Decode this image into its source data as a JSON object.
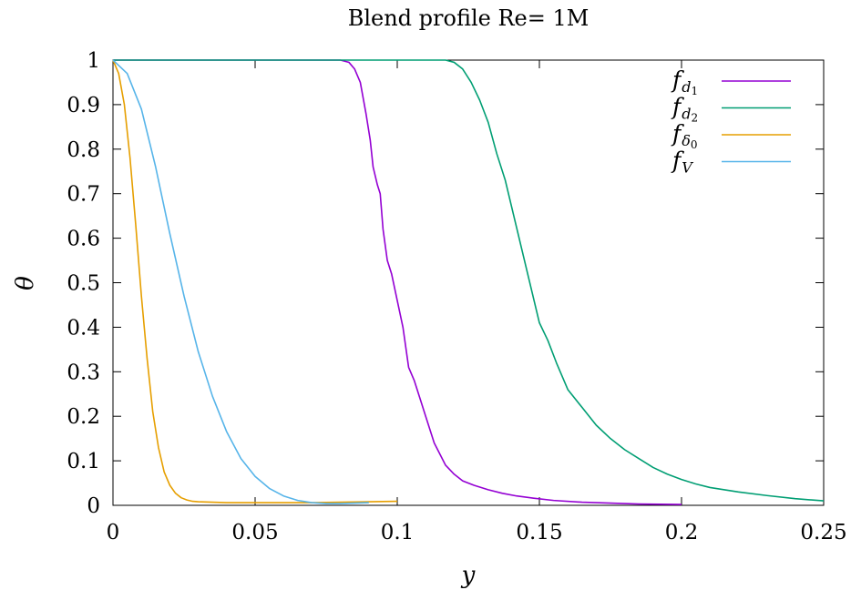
{
  "chart_data": {
    "type": "line",
    "title": "Blend profile Re= 1M",
    "xlabel": "y",
    "ylabel": "θ",
    "xlim": [
      0,
      0.25
    ],
    "ylim": [
      0,
      1
    ],
    "grid": false,
    "legend_position": "top-right",
    "x_ticks": [
      "0",
      "0.05",
      "0.1",
      "0.15",
      "0.2",
      "0.25"
    ],
    "y_ticks": [
      "0",
      "0.1",
      "0.2",
      "0.3",
      "0.4",
      "0.5",
      "0.6",
      "0.7",
      "0.8",
      "0.9",
      "1"
    ],
    "series": [
      {
        "name": "f_{d_1}",
        "legend": {
          "base": "f",
          "sub": "d",
          "subsub": "1"
        },
        "color": "#9400d3",
        "x": [
          0,
          0.02,
          0.05,
          0.08,
          0.083,
          0.085,
          0.087,
          0.089,
          0.0905,
          0.0915,
          0.093,
          0.094,
          0.095,
          0.0965,
          0.098,
          0.1,
          0.102,
          0.104,
          0.106,
          0.108,
          0.11,
          0.113,
          0.117,
          0.12,
          0.123,
          0.127,
          0.132,
          0.137,
          0.142,
          0.148,
          0.155,
          0.165,
          0.175,
          0.185,
          0.2
        ],
        "y": [
          1,
          1,
          1,
          1,
          0.995,
          0.98,
          0.95,
          0.88,
          0.82,
          0.76,
          0.72,
          0.7,
          0.62,
          0.55,
          0.52,
          0.46,
          0.4,
          0.31,
          0.28,
          0.24,
          0.2,
          0.14,
          0.09,
          0.07,
          0.055,
          0.045,
          0.035,
          0.027,
          0.021,
          0.016,
          0.011,
          0.007,
          0.005,
          0.003,
          0.002
        ]
      },
      {
        "name": "f_{d_2}",
        "legend": {
          "base": "f",
          "sub": "d",
          "subsub": "2"
        },
        "color": "#009e73",
        "x": [
          0,
          0.05,
          0.1,
          0.117,
          0.12,
          0.123,
          0.126,
          0.129,
          0.132,
          0.135,
          0.138,
          0.141,
          0.144,
          0.147,
          0.15,
          0.153,
          0.156,
          0.16,
          0.165,
          0.17,
          0.175,
          0.18,
          0.185,
          0.19,
          0.195,
          0.2,
          0.205,
          0.21,
          0.22,
          0.23,
          0.24,
          0.25
        ],
        "y": [
          1,
          1,
          1,
          1,
          0.995,
          0.98,
          0.95,
          0.91,
          0.86,
          0.79,
          0.73,
          0.65,
          0.57,
          0.49,
          0.41,
          0.37,
          0.32,
          0.26,
          0.22,
          0.18,
          0.15,
          0.125,
          0.105,
          0.085,
          0.07,
          0.058,
          0.048,
          0.04,
          0.03,
          0.022,
          0.015,
          0.01
        ]
      },
      {
        "name": "f_{δ_0}",
        "legend": {
          "base": "f",
          "sub": "δ",
          "subsub": "0"
        },
        "color": "#e69f00",
        "x": [
          0,
          0.002,
          0.004,
          0.006,
          0.008,
          0.01,
          0.012,
          0.014,
          0.016,
          0.018,
          0.02,
          0.022,
          0.024,
          0.026,
          0.028,
          0.03,
          0.035,
          0.04,
          0.05,
          0.06,
          0.07,
          0.08,
          0.09,
          0.1
        ],
        "y": [
          1,
          0.97,
          0.9,
          0.78,
          0.63,
          0.47,
          0.33,
          0.21,
          0.13,
          0.075,
          0.045,
          0.027,
          0.017,
          0.012,
          0.009,
          0.008,
          0.007,
          0.006,
          0.006,
          0.006,
          0.006,
          0.007,
          0.008,
          0.009
        ]
      },
      {
        "name": "f_V",
        "legend": {
          "base": "f",
          "sub": "V",
          "subsub": ""
        },
        "color": "#56b4e9",
        "x": [
          0,
          0.005,
          0.01,
          0.015,
          0.02,
          0.025,
          0.03,
          0.035,
          0.04,
          0.045,
          0.05,
          0.055,
          0.06,
          0.065,
          0.07,
          0.075,
          0.08,
          0.085,
          0.09
        ],
        "y": [
          1,
          0.97,
          0.89,
          0.76,
          0.61,
          0.47,
          0.345,
          0.245,
          0.165,
          0.105,
          0.065,
          0.038,
          0.021,
          0.011,
          0.006,
          0.004,
          0.004,
          0.005,
          0.006
        ]
      }
    ]
  }
}
